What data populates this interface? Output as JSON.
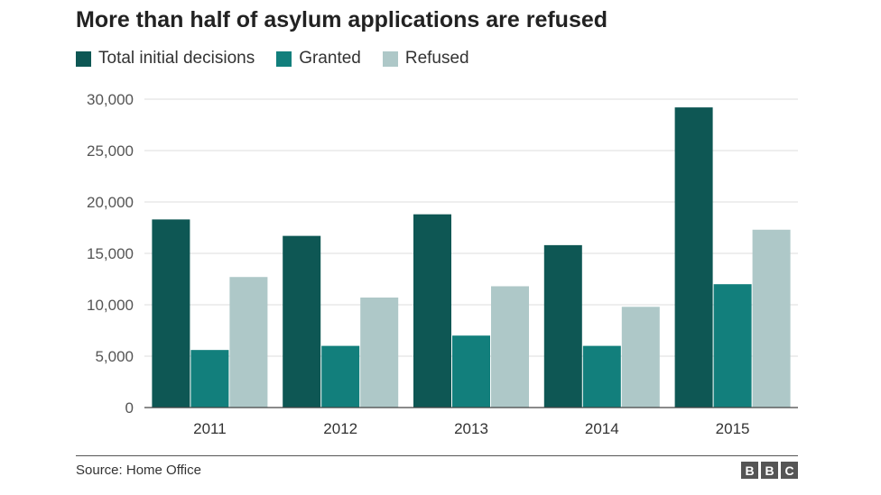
{
  "chart_data": {
    "type": "bar",
    "title": "More than half of asylum applications are refused",
    "categories": [
      "2011",
      "2012",
      "2013",
      "2014",
      "2015"
    ],
    "series": [
      {
        "name": "Total initial decisions",
        "color": "#0e5754",
        "values": [
          18300,
          16700,
          18800,
          15800,
          29200
        ]
      },
      {
        "name": "Granted",
        "color": "#127f7c",
        "values": [
          5600,
          6000,
          7000,
          6000,
          12000
        ]
      },
      {
        "name": "Refused",
        "color": "#aec8c8",
        "values": [
          12700,
          10700,
          11800,
          9800,
          17300
        ]
      }
    ],
    "yticks": [
      "0",
      "5,000",
      "10,000",
      "15,000",
      "20,000",
      "25,000",
      "30,000"
    ],
    "ylim": [
      0,
      30000
    ],
    "grid": true,
    "legend_position": "top-left",
    "source": "Source: Home Office"
  },
  "branding": {
    "logo_letters": [
      "B",
      "B",
      "C"
    ]
  }
}
